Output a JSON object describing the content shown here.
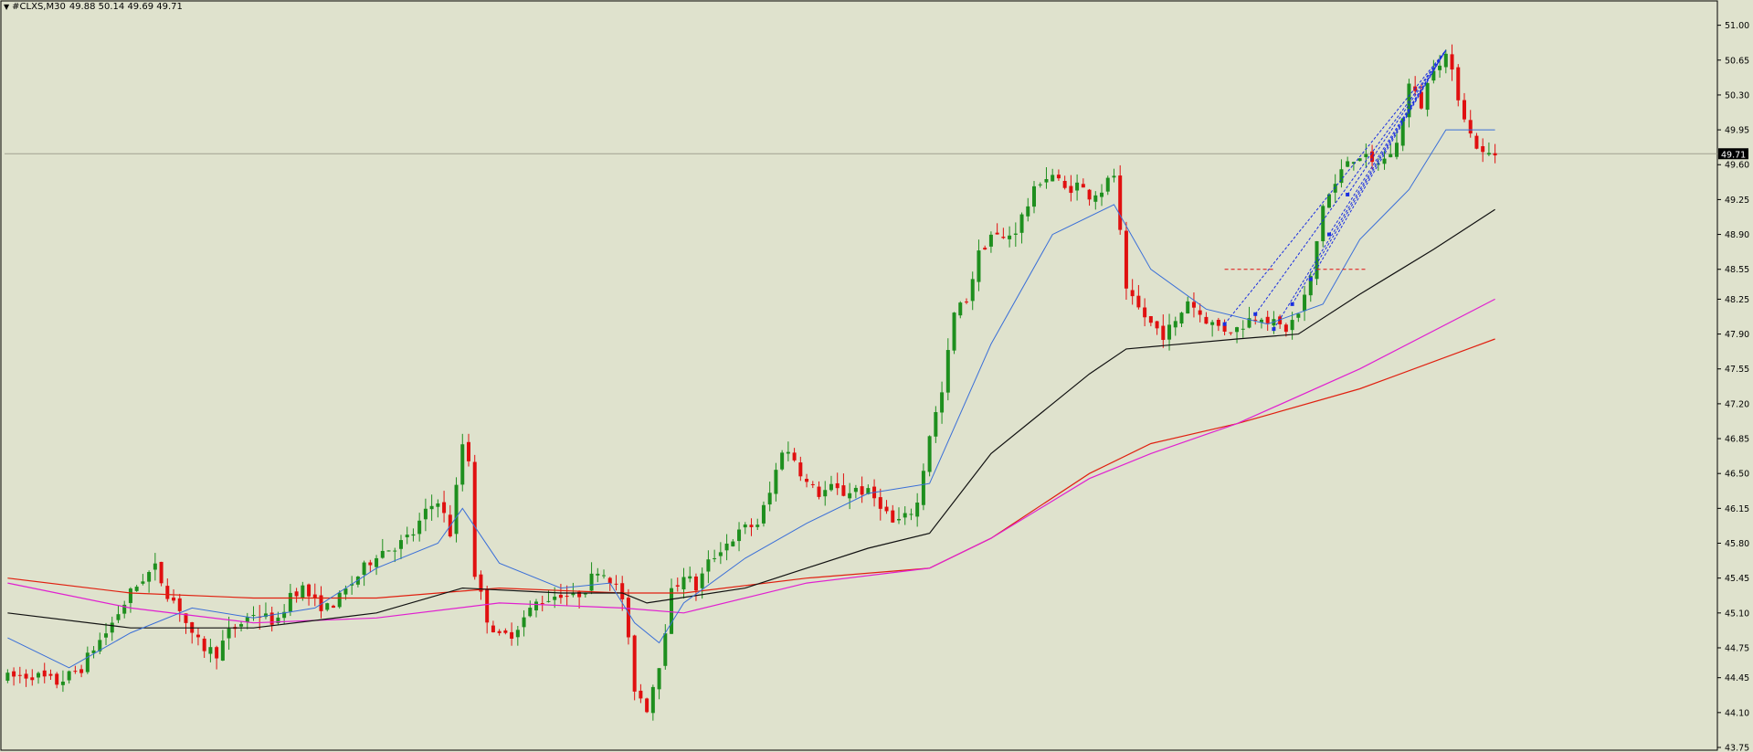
{
  "header": {
    "symbol": "#CLXS,M30",
    "ohlc": "49.88 50.14 49.69 49.71"
  },
  "chart_data": {
    "type": "candlestick",
    "symbol": "#CLXS",
    "timeframe": "M30",
    "ylim": [
      43.75,
      51.18
    ],
    "y_ticks": [
      "51.00",
      "50.65",
      "50.30",
      "49.95",
      "49.60",
      "49.25",
      "48.90",
      "48.55",
      "48.25",
      "47.90",
      "47.55",
      "47.20",
      "46.85",
      "46.50",
      "46.15",
      "45.80",
      "45.45",
      "45.10",
      "44.75",
      "44.45",
      "44.10",
      "43.75"
    ],
    "current_price": "49.71",
    "current_price_value": 49.71,
    "colors": {
      "background": "#dfe2cd",
      "bull": "#1e8f1e",
      "bear": "#e01010",
      "ma_fast": "#3a6fd8",
      "ma_slow": "#111111",
      "ma_magenta": "#e020d0",
      "ma_red": "#e02010",
      "fib": "#1a2fe0",
      "price_line": "#a0a090"
    },
    "keypoints": [
      [
        0,
        44.45
      ],
      [
        4,
        44.48
      ],
      [
        8,
        44.4
      ],
      [
        10,
        44.47
      ],
      [
        12,
        44.55
      ],
      [
        14,
        44.75
      ],
      [
        16,
        44.9
      ],
      [
        18,
        45.1
      ],
      [
        20,
        45.3
      ],
      [
        22,
        45.45
      ],
      [
        24,
        45.55
      ],
      [
        26,
        45.3
      ],
      [
        28,
        45.15
      ],
      [
        30,
        44.85
      ],
      [
        32,
        44.75
      ],
      [
        34,
        44.7
      ],
      [
        36,
        44.9
      ],
      [
        38,
        45.0
      ],
      [
        40,
        45.1
      ],
      [
        42,
        45.05
      ],
      [
        44,
        45.0
      ],
      [
        46,
        45.3
      ],
      [
        48,
        45.35
      ],
      [
        50,
        45.2
      ],
      [
        52,
        45.15
      ],
      [
        54,
        45.25
      ],
      [
        56,
        45.4
      ],
      [
        58,
        45.55
      ],
      [
        60,
        45.7
      ],
      [
        62,
        45.75
      ],
      [
        64,
        45.8
      ],
      [
        66,
        45.9
      ],
      [
        68,
        46.1
      ],
      [
        70,
        46.25
      ],
      [
        72,
        45.9
      ],
      [
        74,
        46.8
      ],
      [
        75,
        46.65
      ],
      [
        76,
        45.5
      ],
      [
        78,
        45.05
      ],
      [
        80,
        44.85
      ],
      [
        82,
        44.9
      ],
      [
        84,
        45.05
      ],
      [
        86,
        45.2
      ],
      [
        88,
        45.25
      ],
      [
        90,
        45.3
      ],
      [
        92,
        45.25
      ],
      [
        94,
        45.35
      ],
      [
        96,
        45.55
      ],
      [
        98,
        45.45
      ],
      [
        100,
        45.25
      ],
      [
        102,
        44.35
      ],
      [
        104,
        44.15
      ],
      [
        106,
        44.6
      ],
      [
        108,
        45.3
      ],
      [
        110,
        45.5
      ],
      [
        112,
        45.35
      ],
      [
        114,
        45.6
      ],
      [
        116,
        45.75
      ],
      [
        118,
        45.85
      ],
      [
        120,
        45.95
      ],
      [
        122,
        46.0
      ],
      [
        124,
        46.3
      ],
      [
        126,
        46.75
      ],
      [
        128,
        46.65
      ],
      [
        130,
        46.4
      ],
      [
        132,
        46.3
      ],
      [
        134,
        46.35
      ],
      [
        136,
        46.3
      ],
      [
        138,
        46.35
      ],
      [
        140,
        46.3
      ],
      [
        142,
        46.2
      ],
      [
        144,
        46.0
      ],
      [
        146,
        46.05
      ],
      [
        148,
        46.2
      ],
      [
        150,
        46.9
      ],
      [
        152,
        47.3
      ],
      [
        154,
        48.1
      ],
      [
        156,
        48.25
      ],
      [
        158,
        48.7
      ],
      [
        160,
        48.9
      ],
      [
        162,
        48.85
      ],
      [
        164,
        48.95
      ],
      [
        166,
        49.2
      ],
      [
        168,
        49.45
      ],
      [
        170,
        49.5
      ],
      [
        172,
        49.35
      ],
      [
        174,
        49.4
      ],
      [
        176,
        49.3
      ],
      [
        178,
        49.35
      ],
      [
        180,
        49.5
      ],
      [
        182,
        48.3
      ],
      [
        184,
        48.15
      ],
      [
        186,
        48.0
      ],
      [
        188,
        47.9
      ],
      [
        190,
        48.0
      ],
      [
        192,
        48.25
      ],
      [
        194,
        48.1
      ],
      [
        196,
        48.0
      ],
      [
        198,
        47.95
      ],
      [
        200,
        47.95
      ],
      [
        202,
        48.05
      ],
      [
        204,
        48.1
      ],
      [
        206,
        48.0
      ],
      [
        208,
        47.95
      ],
      [
        210,
        48.1
      ],
      [
        212,
        48.45
      ],
      [
        214,
        49.2
      ],
      [
        216,
        49.4
      ],
      [
        218,
        49.65
      ],
      [
        220,
        49.7
      ],
      [
        222,
        49.6
      ],
      [
        224,
        49.65
      ],
      [
        226,
        49.8
      ],
      [
        228,
        50.4
      ],
      [
        230,
        50.2
      ],
      [
        232,
        50.6
      ],
      [
        234,
        50.7
      ],
      [
        236,
        50.3
      ],
      [
        238,
        49.9
      ],
      [
        240,
        49.7
      ],
      [
        242,
        49.71
      ]
    ],
    "ma_fast_points": [
      [
        0,
        44.85
      ],
      [
        10,
        44.55
      ],
      [
        20,
        44.9
      ],
      [
        30,
        45.15
      ],
      [
        40,
        45.05
      ],
      [
        50,
        45.15
      ],
      [
        60,
        45.55
      ],
      [
        70,
        45.8
      ],
      [
        74,
        46.15
      ],
      [
        80,
        45.6
      ],
      [
        90,
        45.35
      ],
      [
        98,
        45.4
      ],
      [
        102,
        45.0
      ],
      [
        106,
        44.8
      ],
      [
        110,
        45.2
      ],
      [
        120,
        45.65
      ],
      [
        130,
        46.0
      ],
      [
        140,
        46.3
      ],
      [
        150,
        46.4
      ],
      [
        160,
        47.8
      ],
      [
        170,
        48.9
      ],
      [
        180,
        49.2
      ],
      [
        186,
        48.55
      ],
      [
        195,
        48.15
      ],
      [
        205,
        48.0
      ],
      [
        214,
        48.2
      ],
      [
        220,
        48.85
      ],
      [
        228,
        49.35
      ],
      [
        234,
        49.95
      ],
      [
        242,
        49.95
      ]
    ],
    "ma_slow_points": [
      [
        0,
        45.1
      ],
      [
        20,
        44.95
      ],
      [
        40,
        44.95
      ],
      [
        60,
        45.1
      ],
      [
        74,
        45.35
      ],
      [
        90,
        45.3
      ],
      [
        100,
        45.3
      ],
      [
        104,
        45.2
      ],
      [
        120,
        45.35
      ],
      [
        140,
        45.75
      ],
      [
        150,
        45.9
      ],
      [
        160,
        46.7
      ],
      [
        176,
        47.5
      ],
      [
        182,
        47.75
      ],
      [
        200,
        47.85
      ],
      [
        210,
        47.9
      ],
      [
        220,
        48.3
      ],
      [
        232,
        48.75
      ],
      [
        242,
        49.15
      ]
    ],
    "ma_magenta_points": [
      [
        0,
        45.4
      ],
      [
        20,
        45.15
      ],
      [
        40,
        45.0
      ],
      [
        60,
        45.05
      ],
      [
        80,
        45.2
      ],
      [
        100,
        45.15
      ],
      [
        110,
        45.1
      ],
      [
        130,
        45.4
      ],
      [
        150,
        45.55
      ],
      [
        160,
        45.85
      ],
      [
        176,
        46.45
      ],
      [
        186,
        46.7
      ],
      [
        200,
        47.0
      ],
      [
        220,
        47.55
      ],
      [
        242,
        48.25
      ]
    ],
    "ma_red_points": [
      [
        0,
        45.45
      ],
      [
        20,
        45.3
      ],
      [
        40,
        45.25
      ],
      [
        60,
        45.25
      ],
      [
        80,
        45.35
      ],
      [
        100,
        45.3
      ],
      [
        110,
        45.3
      ],
      [
        130,
        45.45
      ],
      [
        150,
        45.55
      ],
      [
        160,
        45.85
      ],
      [
        176,
        46.5
      ],
      [
        186,
        46.8
      ],
      [
        200,
        47.0
      ],
      [
        220,
        47.35
      ],
      [
        242,
        47.85
      ]
    ],
    "fib_lines": [
      [
        [
          198,
          48.0
        ],
        [
          234,
          50.75
        ]
      ],
      [
        [
          203,
          48.1
        ],
        [
          234,
          50.75
        ]
      ],
      [
        [
          206,
          47.95
        ],
        [
          234,
          50.75
        ]
      ],
      [
        [
          209,
          48.2
        ],
        [
          234,
          50.75
        ]
      ],
      [
        [
          212,
          48.45
        ],
        [
          234,
          50.75
        ]
      ],
      [
        [
          215,
          48.9
        ],
        [
          234,
          50.75
        ]
      ],
      [
        [
          218,
          49.3
        ],
        [
          234,
          50.75
        ]
      ]
    ],
    "fib_marker_levels": [
      [
        198,
        48.55
      ],
      [
        213,
        48.55
      ]
    ]
  }
}
